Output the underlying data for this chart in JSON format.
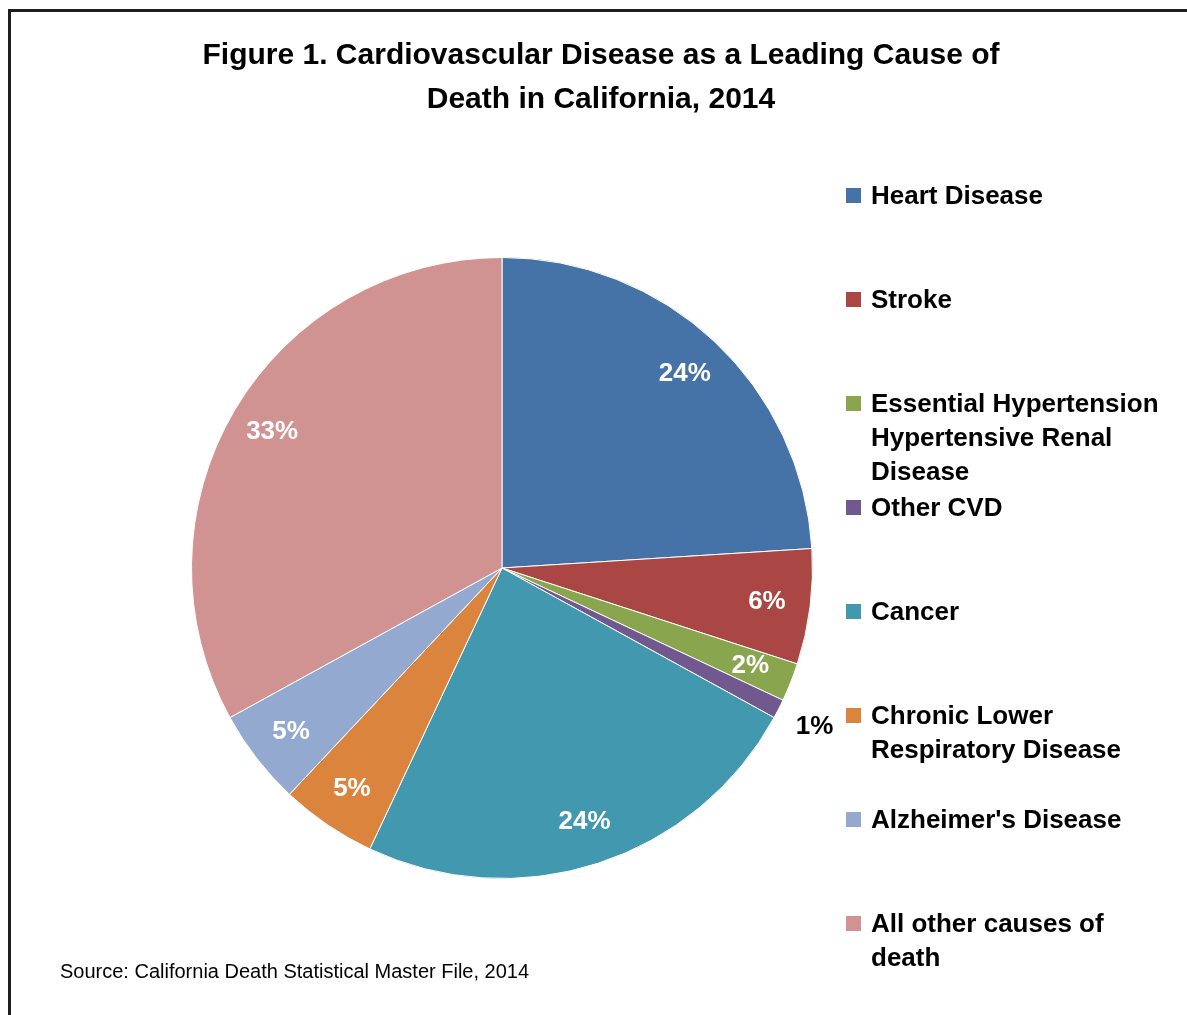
{
  "chart_data": {
    "type": "pie",
    "title": "Figure 1. Cardiovascular Disease as a Leading Cause of Death in California, 2014",
    "categories": [
      "Heart Disease",
      "Stroke",
      "Essential Hypertension Hypertensive Renal Disease",
      "Other CVD",
      "Cancer",
      "Chronic Lower Respiratory Disease",
      "Alzheimer's Disease",
      "All other causes of death"
    ],
    "values": [
      24,
      6,
      2,
      1,
      24,
      5,
      5,
      33
    ],
    "colors": [
      "#4572a7",
      "#aa4643",
      "#89a54e",
      "#71588f",
      "#4198af",
      "#db843d",
      "#93a9cf",
      "#d19392"
    ],
    "value_labels": [
      "24%",
      "6%",
      "2%",
      "1%",
      "24%",
      "5%",
      "5%",
      "33%"
    ],
    "legend": "right",
    "annotations": [
      "Source: California Death Statistical Master File, 2014"
    ]
  }
}
